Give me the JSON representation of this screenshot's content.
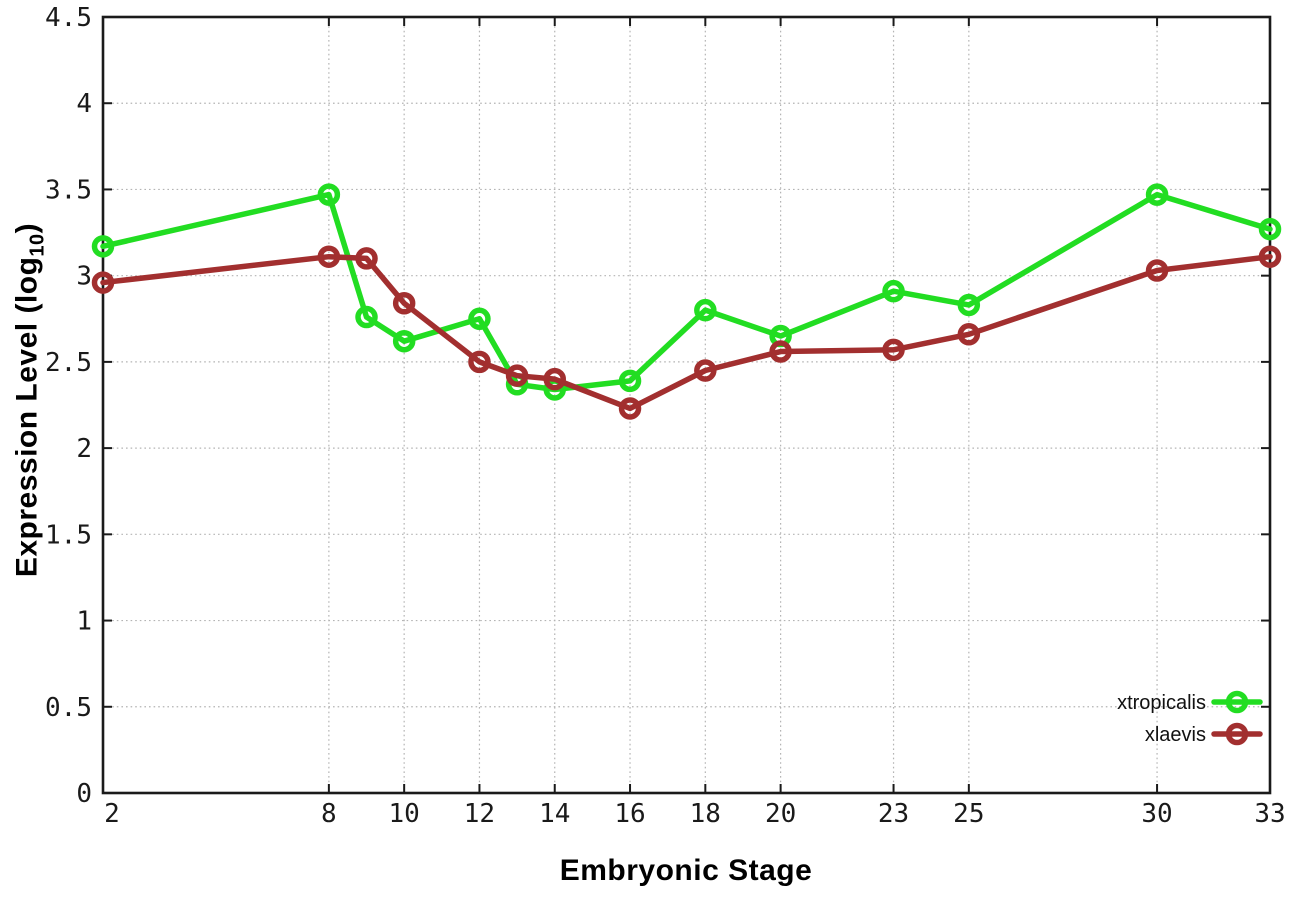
{
  "chart_data": {
    "type": "line",
    "title": "",
    "xlabel": "Embryonic Stage",
    "ylabel": "Expression Level (log10)",
    "ylabel_parts": {
      "prefix": "Expression Level (log",
      "sub": "10",
      "suffix": ")"
    },
    "xlim": [
      2,
      33
    ],
    "ylim": [
      0,
      4.5
    ],
    "grid": true,
    "grid_style": "dotted",
    "legend_position": "inside-bottom-right",
    "x_ticks": [
      2,
      8,
      10,
      12,
      14,
      16,
      18,
      20,
      23,
      25,
      30,
      33
    ],
    "x_tick_labels": [
      "2",
      "8",
      "10",
      "12",
      "14",
      "16",
      "18",
      "20",
      "23",
      "25",
      "30",
      "33"
    ],
    "y_ticks": [
      0,
      0.5,
      1,
      1.5,
      2,
      2.5,
      3,
      3.5,
      4,
      4.5
    ],
    "y_tick_labels": [
      "0",
      "0.5",
      "1",
      "1.5",
      "2",
      "2.5",
      "3",
      "3.5",
      "4",
      "4.5"
    ],
    "x": [
      2,
      8,
      9,
      10,
      12,
      13,
      14,
      16,
      18,
      20,
      23,
      25,
      30,
      33
    ],
    "series": [
      {
        "name": "xtropicalis",
        "color": "#22dd22",
        "marker": "open-circle",
        "values": [
          3.17,
          3.47,
          2.76,
          2.62,
          2.75,
          2.37,
          2.34,
          2.39,
          2.8,
          2.65,
          2.91,
          2.83,
          3.47,
          3.27
        ]
      },
      {
        "name": "xlaevis",
        "color": "#a22f2f",
        "marker": "open-circle",
        "values": [
          2.96,
          3.11,
          3.1,
          2.84,
          2.5,
          2.42,
          2.4,
          2.23,
          2.45,
          2.56,
          2.57,
          2.66,
          3.03,
          3.11
        ]
      }
    ],
    "colors": {
      "border": "#1a1a1a",
      "grid": "#b4b4b4",
      "tick_label": "#1a1a1a",
      "background": "#ffffff"
    }
  }
}
